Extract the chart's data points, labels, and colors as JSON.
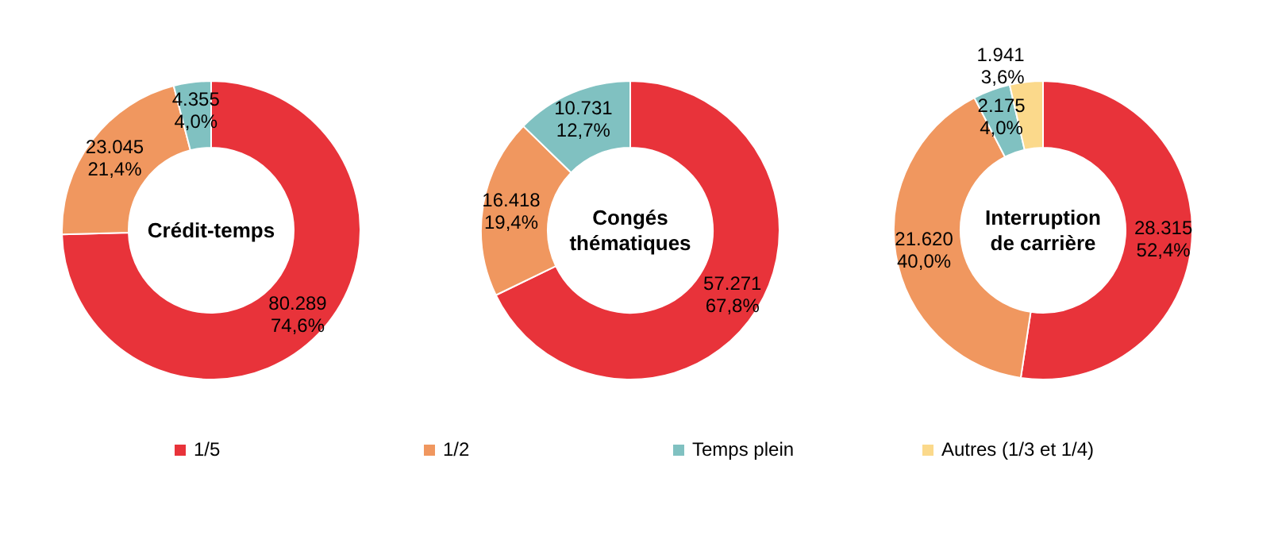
{
  "chart_data": [
    {
      "type": "donut",
      "title": "Crédit-temps",
      "categories": [
        "1/5",
        "1/2",
        "Temps plein",
        "Autres (1/3 et 1/4)"
      ],
      "values": [
        80289,
        23045,
        4355,
        null
      ],
      "value_labels": [
        "80.289\n74,6%",
        "23.045\n21,4%",
        "4.355\n4,0%",
        null
      ],
      "colors": [
        "#e8333a",
        "#f0975f",
        "#80c1c1",
        "#fbd98b"
      ],
      "legend": "bottom"
    },
    {
      "type": "donut",
      "title": "Congés\nthématiques",
      "categories": [
        null,
        null,
        null
      ],
      "values": [
        57271,
        16418,
        10731
      ],
      "value_labels": [
        "57.271\n67,8%",
        "16.418\n19,4%",
        "10.731\n12,7%"
      ],
      "colors": [
        "#e8333a",
        "#f0975f",
        "#80c1c1"
      ]
    },
    {
      "type": "donut",
      "title": "Interruption\nde carrière",
      "categories": [
        null,
        null,
        null,
        null
      ],
      "values": [
        28315,
        21620,
        2175,
        1941
      ],
      "value_labels": [
        "28.315\n52,4%",
        "21.620\n40,0%",
        "2.175\n4,0%",
        "1.941\n3,6%"
      ],
      "colors": [
        "#e8333a",
        "#f0975f",
        "#80c1c1",
        "#fbd98b"
      ]
    }
  ]
}
